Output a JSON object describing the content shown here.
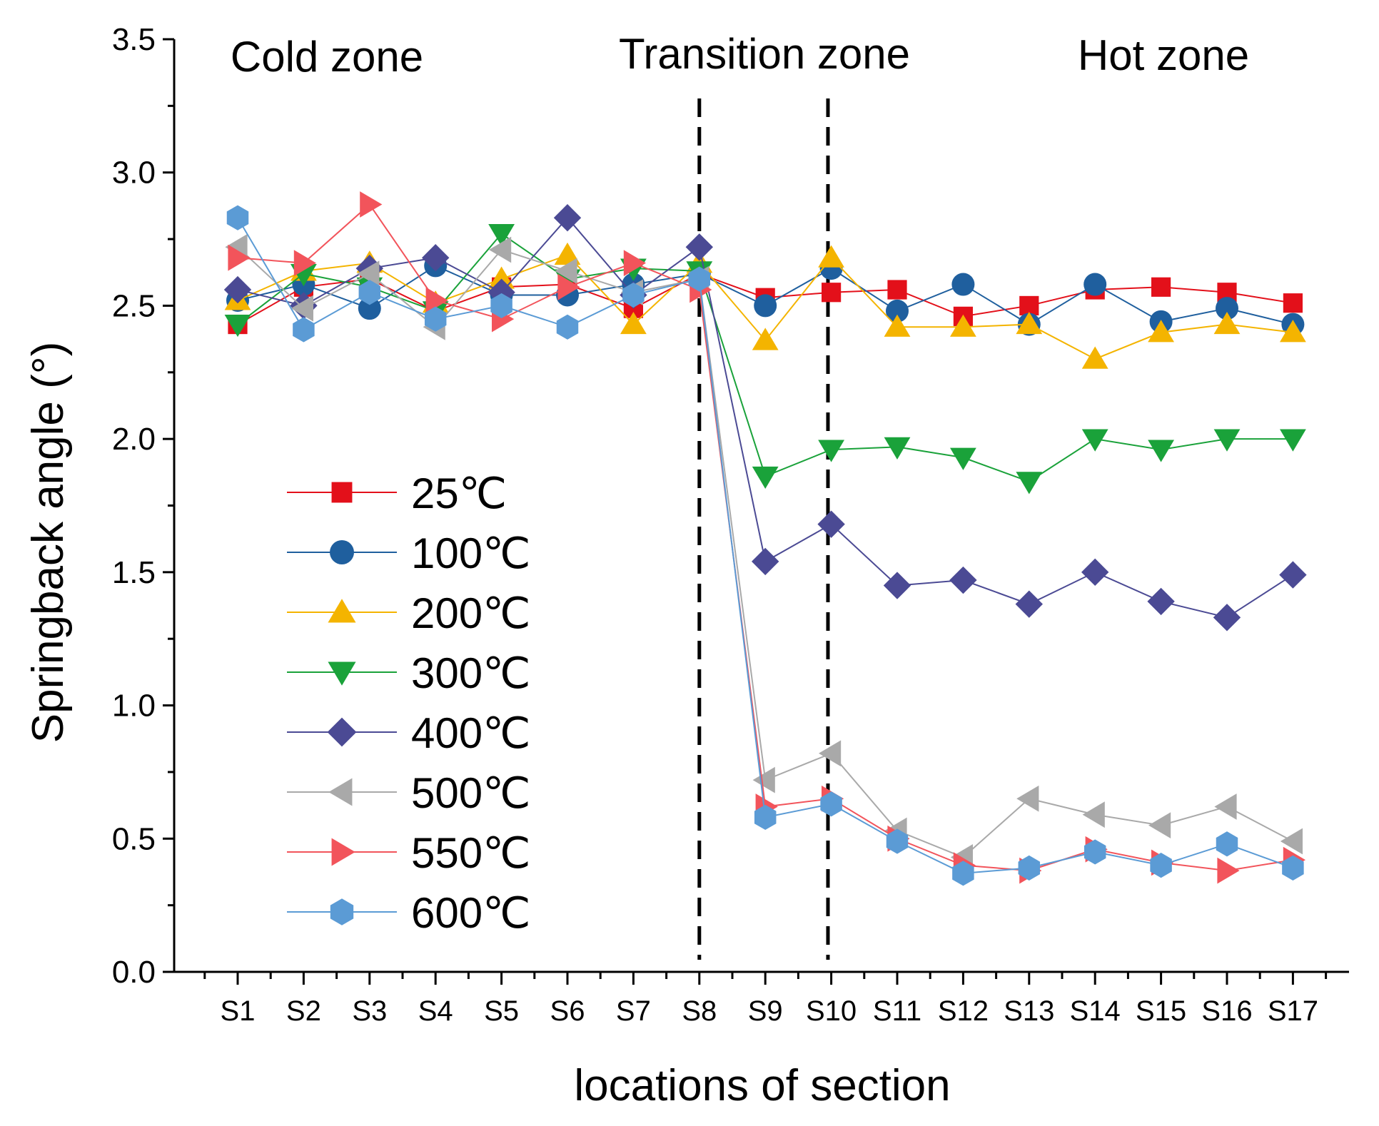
{
  "chart_data": {
    "type": "line",
    "title": "",
    "xlabel": "locations of section",
    "ylabel": "Springback angle (°)",
    "ylim": [
      0,
      3.5
    ],
    "yticks": [
      "0.0",
      "0.5",
      "1.0",
      "1.5",
      "2.0",
      "2.5",
      "3.0",
      "3.5"
    ],
    "categories": [
      "S1",
      "S2",
      "S3",
      "S4",
      "S5",
      "S6",
      "S7",
      "S8",
      "S9",
      "S10",
      "S11",
      "S12",
      "S13",
      "S14",
      "S15",
      "S16",
      "S17"
    ],
    "zones": [
      {
        "label": "Cold zone"
      },
      {
        "label": "Transition zone"
      },
      {
        "label": "Hot zone"
      }
    ],
    "dividers": [
      {
        "x_index": 8.0
      },
      {
        "x_index": 9.95
      }
    ],
    "legend_position": "left-center",
    "grid": false,
    "series": [
      {
        "name": "25℃",
        "color": "#e3101a",
        "marker": "square",
        "values": [
          2.43,
          2.57,
          2.6,
          2.48,
          2.57,
          2.58,
          2.49,
          2.62,
          2.53,
          2.55,
          2.56,
          2.46,
          2.5,
          2.56,
          2.57,
          2.55,
          2.51
        ]
      },
      {
        "name": "100℃",
        "color": "#1f5f9e",
        "marker": "circle",
        "values": [
          2.52,
          2.58,
          2.49,
          2.65,
          2.54,
          2.54,
          2.58,
          2.62,
          2.5,
          2.64,
          2.48,
          2.58,
          2.43,
          2.58,
          2.44,
          2.49,
          2.43
        ]
      },
      {
        "name": "200℃",
        "color": "#f4b400",
        "marker": "triangle-up",
        "values": [
          2.52,
          2.63,
          2.66,
          2.51,
          2.6,
          2.69,
          2.43,
          2.66,
          2.37,
          2.68,
          2.42,
          2.42,
          2.43,
          2.3,
          2.4,
          2.43,
          2.4
        ]
      },
      {
        "name": "300℃",
        "color": "#1aa23a",
        "marker": "triangle-down",
        "values": [
          2.43,
          2.62,
          2.57,
          2.48,
          2.77,
          2.6,
          2.64,
          2.63,
          1.86,
          1.96,
          1.97,
          1.93,
          1.84,
          2.0,
          1.96,
          2.0,
          2.0
        ]
      },
      {
        "name": "400℃",
        "color": "#4b4a94",
        "marker": "diamond",
        "values": [
          2.56,
          2.5,
          2.64,
          2.68,
          2.55,
          2.83,
          2.54,
          2.72,
          1.54,
          1.68,
          1.45,
          1.47,
          1.38,
          1.5,
          1.39,
          1.33,
          1.49
        ]
      },
      {
        "name": "500℃",
        "color": "#a9a9a9",
        "marker": "triangle-left",
        "values": [
          2.72,
          2.49,
          2.62,
          2.42,
          2.71,
          2.63,
          2.55,
          2.6,
          0.72,
          0.82,
          0.53,
          0.43,
          0.65,
          0.59,
          0.55,
          0.62,
          0.49
        ]
      },
      {
        "name": "550℃",
        "color": "#f2545b",
        "marker": "triangle-right",
        "values": [
          2.68,
          2.66,
          2.88,
          2.52,
          2.45,
          2.57,
          2.66,
          2.56,
          0.62,
          0.65,
          0.5,
          0.4,
          0.38,
          0.46,
          0.41,
          0.38,
          0.42
        ]
      },
      {
        "name": "600℃",
        "color": "#5b9bd5",
        "marker": "hexagon",
        "values": [
          2.83,
          2.41,
          2.55,
          2.45,
          2.5,
          2.42,
          2.54,
          2.6,
          0.58,
          0.63,
          0.49,
          0.37,
          0.39,
          0.45,
          0.4,
          0.48,
          0.39
        ]
      }
    ]
  }
}
